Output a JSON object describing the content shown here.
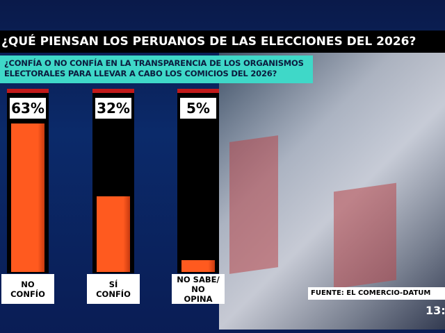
{
  "chart_data": {
    "type": "bar",
    "title": "¿QUÉ PIENSAN LOS PERUANOS DE LAS ELECCIONES DEL 2026?",
    "subtitle": "¿CONFÍA O NO CONFÍA EN LA TRANSPARENCIA DE LOS ORGANISMOS ELECTORALES PARA LLEVAR A CABO LOS COMICIOS DEL 2026?",
    "categories": [
      "NO CONFÍO",
      "SÍ CONFÍO",
      "NO SABE/ NO OPINA"
    ],
    "values": [
      63,
      32,
      5
    ],
    "value_labels": [
      "63%",
      "32%",
      "5%"
    ],
    "color": "#ff5a1f",
    "source": "FUENTE: EL COMERCIO-DATUM",
    "time": "13:"
  }
}
